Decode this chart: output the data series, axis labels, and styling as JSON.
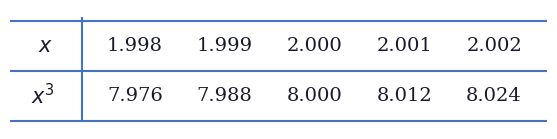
{
  "x_label": "x",
  "x3_label": "x^3",
  "x_values": [
    "1.998",
    "1.999",
    "2.000",
    "2.001",
    "2.002"
  ],
  "x3_values": [
    "7.976",
    "7.988",
    "8.000",
    "8.012",
    "8.024"
  ],
  "line_color": "#4472C4",
  "text_color": "#1a1a2e",
  "bg_color": "#ffffff",
  "fig_width": 5.57,
  "fig_height": 1.39,
  "dpi": 100
}
